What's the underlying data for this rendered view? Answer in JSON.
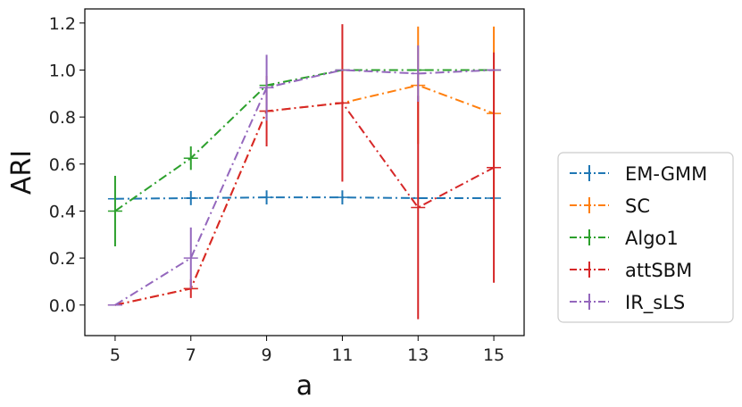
{
  "chart_data": {
    "type": "line",
    "xlabel": "a",
    "ylabel": "ARI",
    "x": [
      5,
      7,
      9,
      11,
      13,
      15
    ],
    "xticks": [
      "5",
      "7",
      "9",
      "11",
      "13",
      "15"
    ],
    "yticks": [
      "0.0",
      "0.2",
      "0.4",
      "0.6",
      "0.8",
      "1.0",
      "1.2"
    ],
    "xlim": [
      4.2,
      15.8
    ],
    "ylim": [
      -0.13,
      1.26
    ],
    "grid": false,
    "legend": "right",
    "line_style": "dash-dot",
    "series": [
      {
        "name": "EM-GMM",
        "color": "#1f77b4",
        "values": [
          0.452,
          0.455,
          0.458,
          0.458,
          0.455,
          0.455
        ],
        "errors": [
          0.0,
          0.03,
          0.03,
          0.03,
          0.0,
          0.0
        ]
      },
      {
        "name": "SC",
        "color": "#ff7f0e",
        "values": [
          0.0,
          0.07,
          0.825,
          0.86,
          0.935,
          0.815
        ],
        "errors": [
          0.0,
          0.0,
          0.0,
          0.0,
          0.25,
          0.37
        ]
      },
      {
        "name": "Algo1",
        "color": "#2ca02c",
        "values": [
          0.4,
          0.625,
          0.935,
          1.0,
          1.0,
          1.0
        ],
        "errors": [
          0.15,
          0.05,
          0.0,
          0.0,
          0.0,
          0.0
        ]
      },
      {
        "name": "attSBM",
        "color": "#d62728",
        "values": [
          0.0,
          0.07,
          0.825,
          0.86,
          0.415,
          0.585
        ],
        "errors": [
          0.0,
          0.04,
          0.15,
          0.335,
          0.475,
          0.49
        ]
      },
      {
        "name": "IR_sLS",
        "color": "#9467bd",
        "values": [
          0.0,
          0.2,
          0.925,
          1.0,
          0.985,
          1.0
        ],
        "errors": [
          0.0,
          0.13,
          0.14,
          0.0,
          0.12,
          0.0
        ]
      }
    ]
  }
}
